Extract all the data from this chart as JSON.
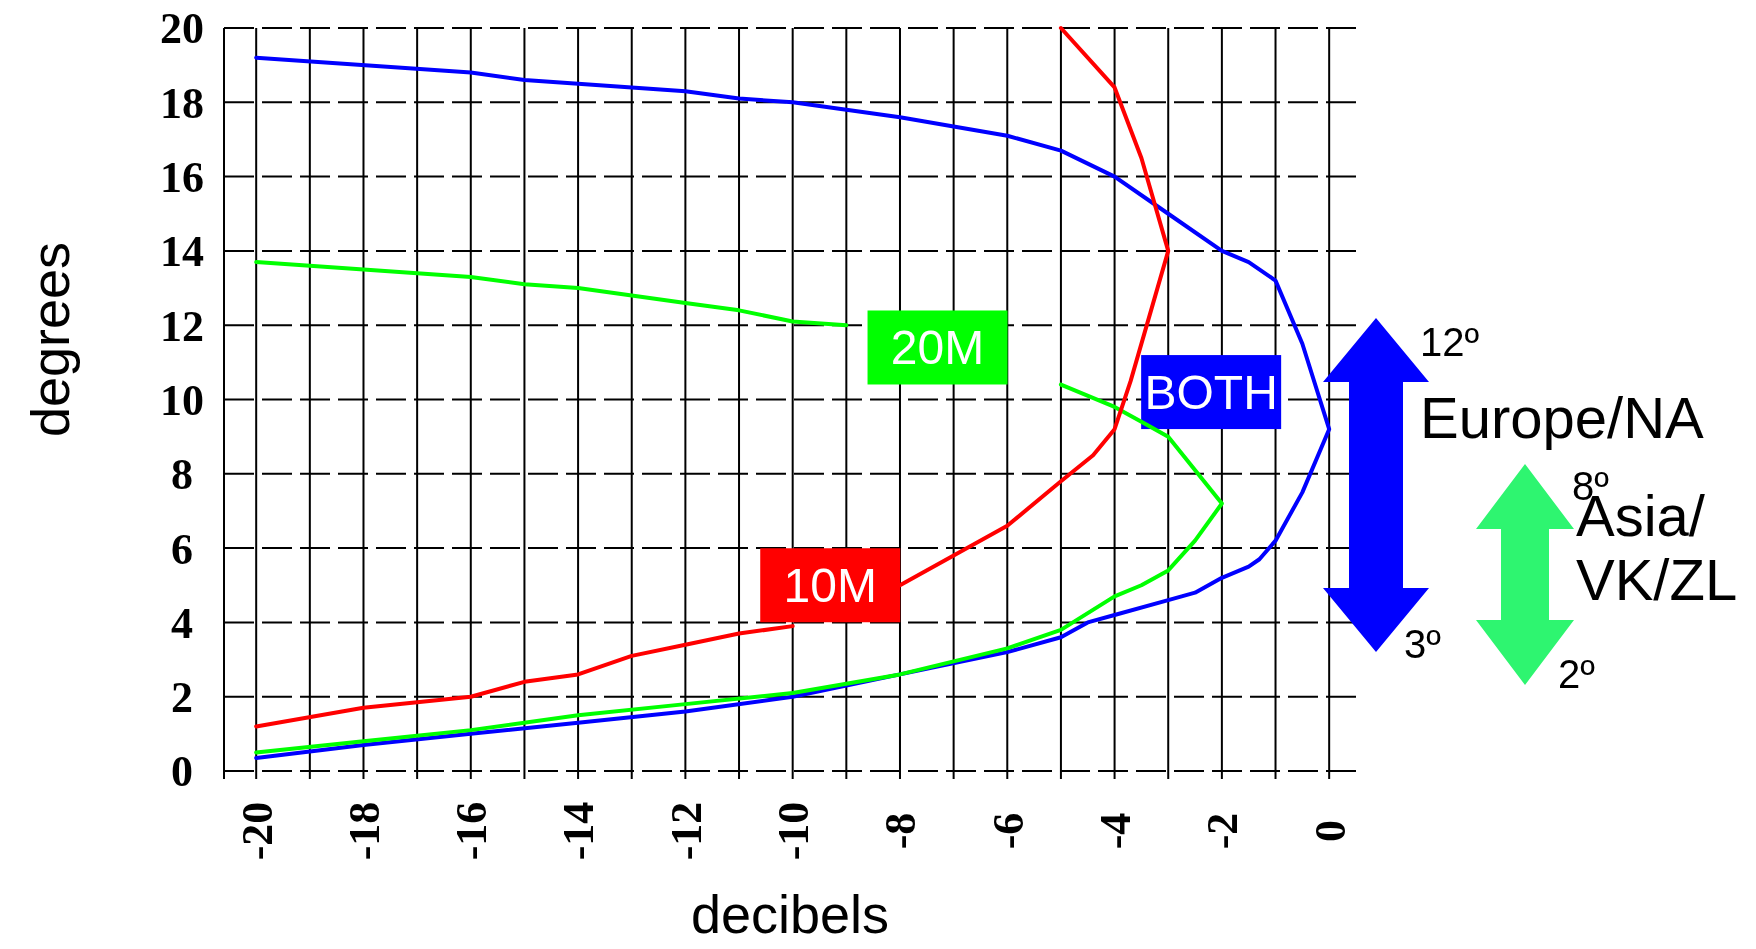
{
  "chart_data": {
    "type": "line",
    "xlabel": "decibels",
    "ylabel": "degrees",
    "xlim": [
      -20.6,
      0.5
    ],
    "ylim": [
      0,
      20
    ],
    "xticks": [
      -20,
      {
        "value": -19,
        "label": null
      },
      -18,
      {
        "value": -17,
        "label": null
      },
      -16,
      {
        "value": -15,
        "label": null
      },
      -14,
      {
        "value": -13,
        "label": null
      },
      -12,
      {
        "value": -11,
        "label": null
      },
      -10,
      {
        "value": -9,
        "label": null
      },
      -8,
      {
        "value": -7,
        "label": null
      },
      -6,
      {
        "value": -5,
        "label": null
      },
      -4,
      {
        "value": -3,
        "label": null
      },
      -2,
      {
        "value": -1,
        "label": null
      },
      0
    ],
    "yticks": [
      0,
      2,
      4,
      6,
      8,
      10,
      12,
      14,
      16,
      18,
      20
    ],
    "grid": true,
    "marker": "none",
    "line_style": "solid",
    "series": [
      {
        "name": "BOTH",
        "color": "#0000ff",
        "x": [
          -20,
          -16,
          -15,
          -12,
          -11,
          -10,
          -9,
          -8,
          -6,
          -5,
          -4,
          -3,
          -2,
          -1.5,
          -1,
          -0.5,
          0,
          -0.5,
          -1,
          -1.3,
          -1.5,
          -2,
          -2.5,
          -3,
          -4,
          -4.5,
          -5,
          -6,
          -8,
          -10,
          -12,
          -14,
          -16,
          -18,
          -20
        ],
        "values": [
          19.2,
          18.8,
          18.6,
          18.3,
          18.1,
          18.0,
          17.8,
          17.6,
          17.1,
          16.7,
          16.0,
          15.0,
          14.0,
          13.7,
          13.2,
          11.5,
          9.2,
          7.5,
          6.2,
          5.7,
          5.5,
          5.2,
          4.8,
          4.6,
          4.2,
          4.0,
          3.6,
          3.2,
          2.6,
          2.0,
          1.6,
          1.3,
          1.0,
          0.7,
          0.35
        ]
      },
      {
        "name": "20M",
        "color": "#00ff00",
        "x": [
          -20,
          -18,
          -16,
          -15,
          -14,
          -12,
          -11,
          -10,
          -9,
          -8.5,
          -7,
          -5,
          -4,
          -3.5,
          -3,
          -2,
          -2.5,
          -3,
          -3.5,
          -4,
          -5,
          -6,
          -8,
          -10,
          -12,
          -14,
          -16,
          -18,
          -20
        ],
        "values": [
          13.7,
          13.5,
          13.3,
          13.1,
          13.0,
          12.6,
          12.4,
          12.1,
          12.0,
          null,
          null,
          10.4,
          9.8,
          9.4,
          9.0,
          7.2,
          6.2,
          5.4,
          5.0,
          4.7,
          3.8,
          3.3,
          2.6,
          2.1,
          1.8,
          1.5,
          1.1,
          0.8,
          0.5
        ]
      },
      {
        "name": "10M",
        "color": "#ff0000",
        "x": [
          -5,
          -4,
          -3.5,
          -3,
          -3.3,
          -3.7,
          -4,
          -4.4,
          -5,
          -6,
          -7,
          -8,
          -9,
          -10,
          -11,
          -12,
          -13,
          -14,
          -15,
          -16,
          -18,
          -20
        ],
        "values": [
          20,
          18.4,
          16.5,
          14.0,
          12.5,
          10.5,
          9.2,
          8.5,
          7.8,
          6.6,
          5.8,
          5.0,
          null,
          3.9,
          3.7,
          3.4,
          3.1,
          2.6,
          2.4,
          2.0,
          1.7,
          1.2
        ]
      }
    ],
    "annotations": [
      "12º",
      "Europe/NA",
      "3º",
      "8º",
      "Asia/\nVK/ZL",
      "2º"
    ]
  }
}
